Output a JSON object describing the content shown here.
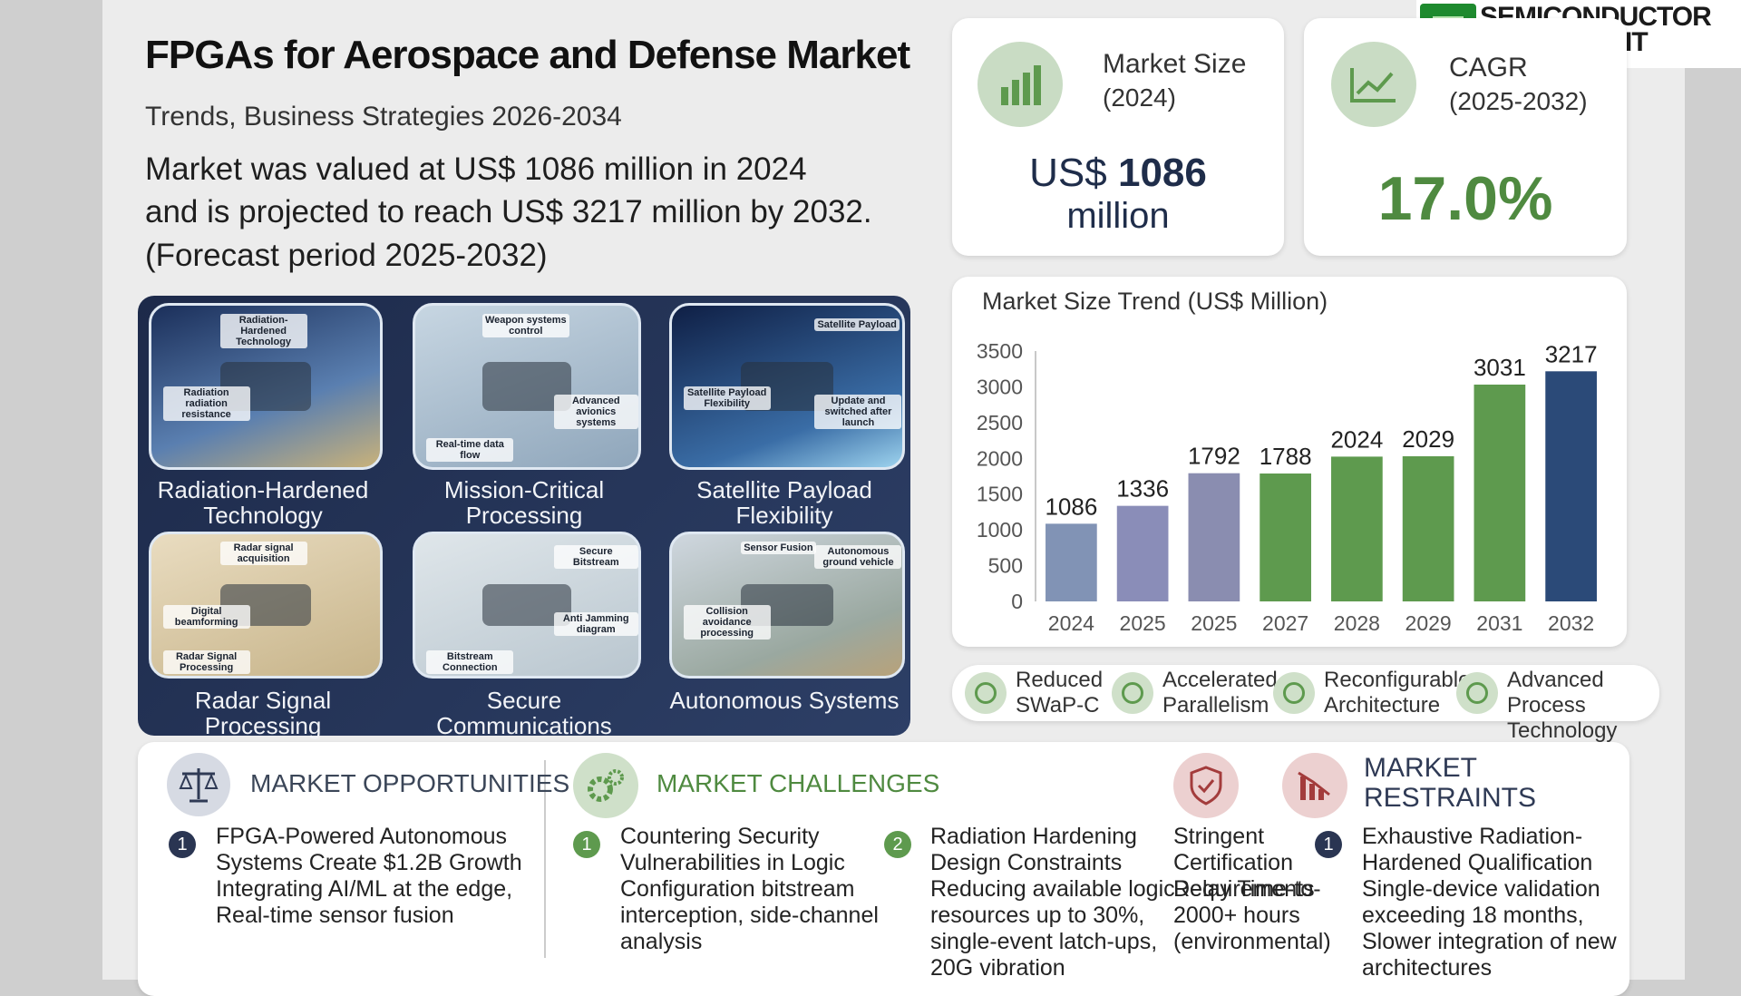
{
  "header": {
    "title": "FPGAs for Aerospace and Defense Market",
    "subtitle": "Trends, Business Strategies 2026-2034",
    "description": [
      "Market was valued at US$ 1086 million in 2024",
      "and is projected to reach US$ 3217 million by 2032.",
      "(Forecast period 2025-2032)"
    ]
  },
  "brand": {
    "line1": "SEMICONDUCTOR",
    "line2": "INSIGHT"
  },
  "market_size": {
    "label": "Market Size",
    "period": "(2024)",
    "prefix": "US$",
    "value": "1086",
    "unit": "million"
  },
  "cagr": {
    "label": "CAGR",
    "period": "(2025-2032)",
    "value": "17.0%"
  },
  "chart_data": {
    "type": "bar",
    "title": "Market Size Trend (US$ Million)",
    "categories": [
      "2024",
      "2025",
      "2025",
      "2027",
      "2028",
      "2029",
      "2031",
      "2032"
    ],
    "values": [
      1086,
      1336,
      1792,
      1788,
      2024,
      2029,
      3031,
      3217
    ],
    "colors": [
      "#8193b5",
      "#8a8db8",
      "#8a8db0",
      "#5e9a4e",
      "#5e9a4e",
      "#5e9a4e",
      "#5e9a4e",
      "#2b4a78"
    ],
    "ylim": [
      0,
      3500
    ],
    "yticks": [
      0,
      500,
      1000,
      1500,
      2000,
      2500,
      3000,
      3500
    ],
    "grid": false
  },
  "applications": [
    {
      "label": "Radiation-Hardened Technology",
      "notes": [
        "Radiation-Hardened Technology",
        "Radiation radiation resistance"
      ]
    },
    {
      "label": "Mission-Critical Processing",
      "notes": [
        "Advanced avionics systems",
        "Real-time data flow",
        "Weapon systems control"
      ]
    },
    {
      "label": "Satellite Payload Flexibility",
      "notes": [
        "Satellite Payload Flexibility",
        "Satellite Payload",
        "Update and switched after launch"
      ]
    },
    {
      "label": "Radar Signal Processing",
      "notes": [
        "Radar Signal Processing",
        "Radar signal acquisition",
        "Digital beamforming"
      ]
    },
    {
      "label": "Secure Communications",
      "notes": [
        "Secure Bitstream",
        "Anti Jamming diagram",
        "Bitstream Connection"
      ]
    },
    {
      "label": "Autonomous Systems",
      "notes": [
        "Sensor Fusion",
        "Collision avoidance processing",
        "Autonomous ground vehicle"
      ]
    }
  ],
  "benefits": [
    "Reduced SWaP-C",
    "Accelerated Parallelism",
    "Reconfigurable Architecture",
    "Advanced Process Technology"
  ],
  "opportunities": {
    "heading": "MARKET OPPORTUNITIES",
    "items": [
      {
        "number": "1",
        "title": "FPGA-Powered Autonomous Systems Create $1.2B Growth",
        "text": "Integrating AI/ML at the edge, Real-time sensor fusion"
      }
    ]
  },
  "challenges": {
    "heading": "MARKET CHALLENGES",
    "items": [
      {
        "number": "1",
        "title": "Countering Security Vulnerabilities in Logic",
        "text": "Configuration bitstream interception, side-channel analysis"
      },
      {
        "number": "2",
        "title": "Radiation Hardening Design Constraints",
        "text": "Reducing available logic resources up to 30%, single-event latch-ups, 20G vibration"
      }
    ]
  },
  "restraints": {
    "heading": "MARKET RESTRAINTS",
    "lead": {
      "title": "Stringent Certification Requirements",
      "text": "Delay Time-to-2000+ hours (environmental)"
    },
    "items": [
      {
        "number": "1",
        "title": "Exhaustive Radiation-Hardened Qualification",
        "text": "Single-device validation exceeding 18 months, Slower integration of new architectures"
      }
    ]
  }
}
